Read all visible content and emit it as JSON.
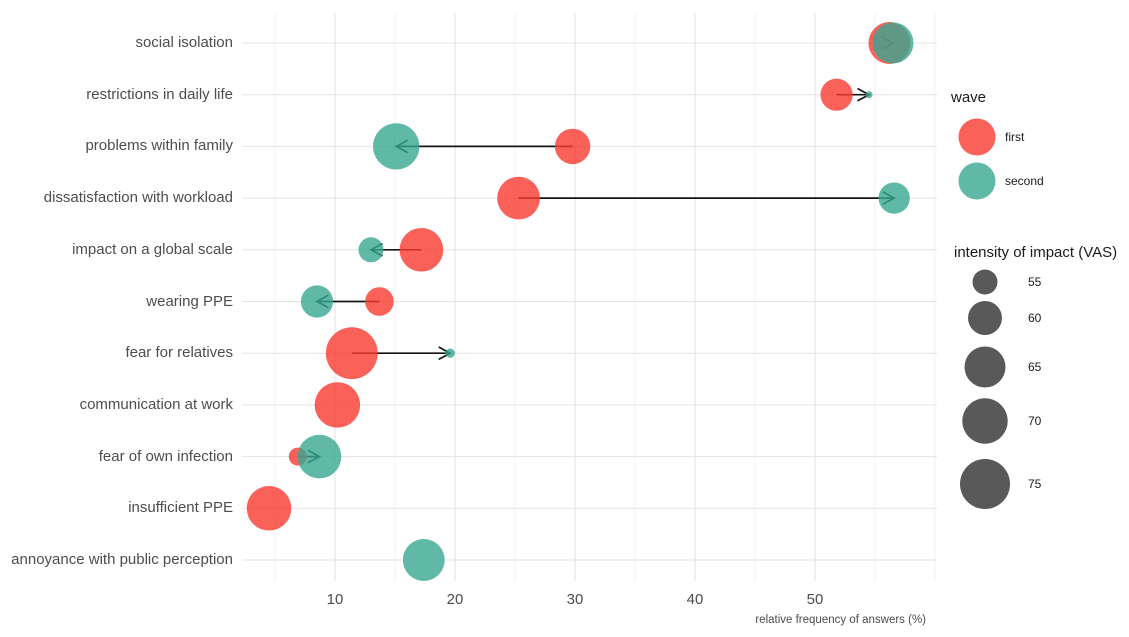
{
  "chart_data": {
    "type": "scatter",
    "subtype": "dumbbell-arrow-bubble",
    "title": "",
    "xlabel": "relative frequency of answers (%)",
    "x_ticks": [
      10,
      20,
      30,
      40,
      50
    ],
    "x_minor_ticks": [
      5,
      15,
      25,
      35,
      45,
      55,
      60
    ],
    "x_range": [
      2.3,
      60.2
    ],
    "grid": "on",
    "legend_position": "right",
    "series_colors": {
      "first": "#f8392f",
      "second": "#38a690",
      "fill_opacity": 0.8,
      "size_legend": "#595959"
    },
    "rows": [
      {
        "label": "social isolation",
        "first": {
          "freq": 56.2,
          "vas": 66
        },
        "second": {
          "freq": 56.5,
          "vas": 65
        }
      },
      {
        "label": "restrictions in daily life",
        "first": {
          "freq": 51.8,
          "vas": 59
        },
        "second": {
          "freq": 54.5,
          "vas": 40
        }
      },
      {
        "label": "problems within family",
        "first": {
          "freq": 29.8,
          "vas": 61
        },
        "second": {
          "freq": 15.1,
          "vas": 71
        }
      },
      {
        "label": "dissatisfaction with workload",
        "first": {
          "freq": 25.3,
          "vas": 67
        },
        "second": {
          "freq": 56.6,
          "vas": 58.5
        }
      },
      {
        "label": "impact on a global scale",
        "first": {
          "freq": 17.2,
          "vas": 68
        },
        "second": {
          "freq": 13.0,
          "vas": 55
        }
      },
      {
        "label": "wearing PPE",
        "first": {
          "freq": 13.7,
          "vas": 57
        },
        "second": {
          "freq": 8.5,
          "vas": 59
        }
      },
      {
        "label": "fear for relatives",
        "first": {
          "freq": 11.4,
          "vas": 77
        },
        "second": {
          "freq": 19.6,
          "vas": 45
        }
      },
      {
        "label": "communication at work",
        "first": {
          "freq": 10.2,
          "vas": 70
        },
        "second": null
      },
      {
        "label": "fear of own infection",
        "first": {
          "freq": 6.9,
          "vas": 50
        },
        "second": {
          "freq": 8.7,
          "vas": 68
        }
      },
      {
        "label": "insufficient PPE",
        "first": {
          "freq": 4.5,
          "vas": 69
        },
        "second": null
      },
      {
        "label": "annoyance with public perception",
        "first": null,
        "second": {
          "freq": 17.4,
          "vas": 66
        }
      }
    ],
    "legend": {
      "wave": {
        "title": "wave",
        "items": [
          {
            "label": "first",
            "color": "#f8392f"
          },
          {
            "label": "second",
            "color": "#38a690"
          }
        ]
      },
      "size": {
        "title": "intensity of impact (VAS)",
        "values": [
          55,
          60,
          65,
          70,
          75
        ],
        "color": "#595959"
      }
    },
    "size_scale_anchors": [
      [
        40,
        3.5
      ],
      [
        45,
        4.7
      ],
      [
        50,
        9
      ],
      [
        55,
        12.5
      ],
      [
        60,
        17
      ],
      [
        65,
        20.5
      ],
      [
        70,
        22.7
      ],
      [
        75,
        25
      ]
    ]
  }
}
